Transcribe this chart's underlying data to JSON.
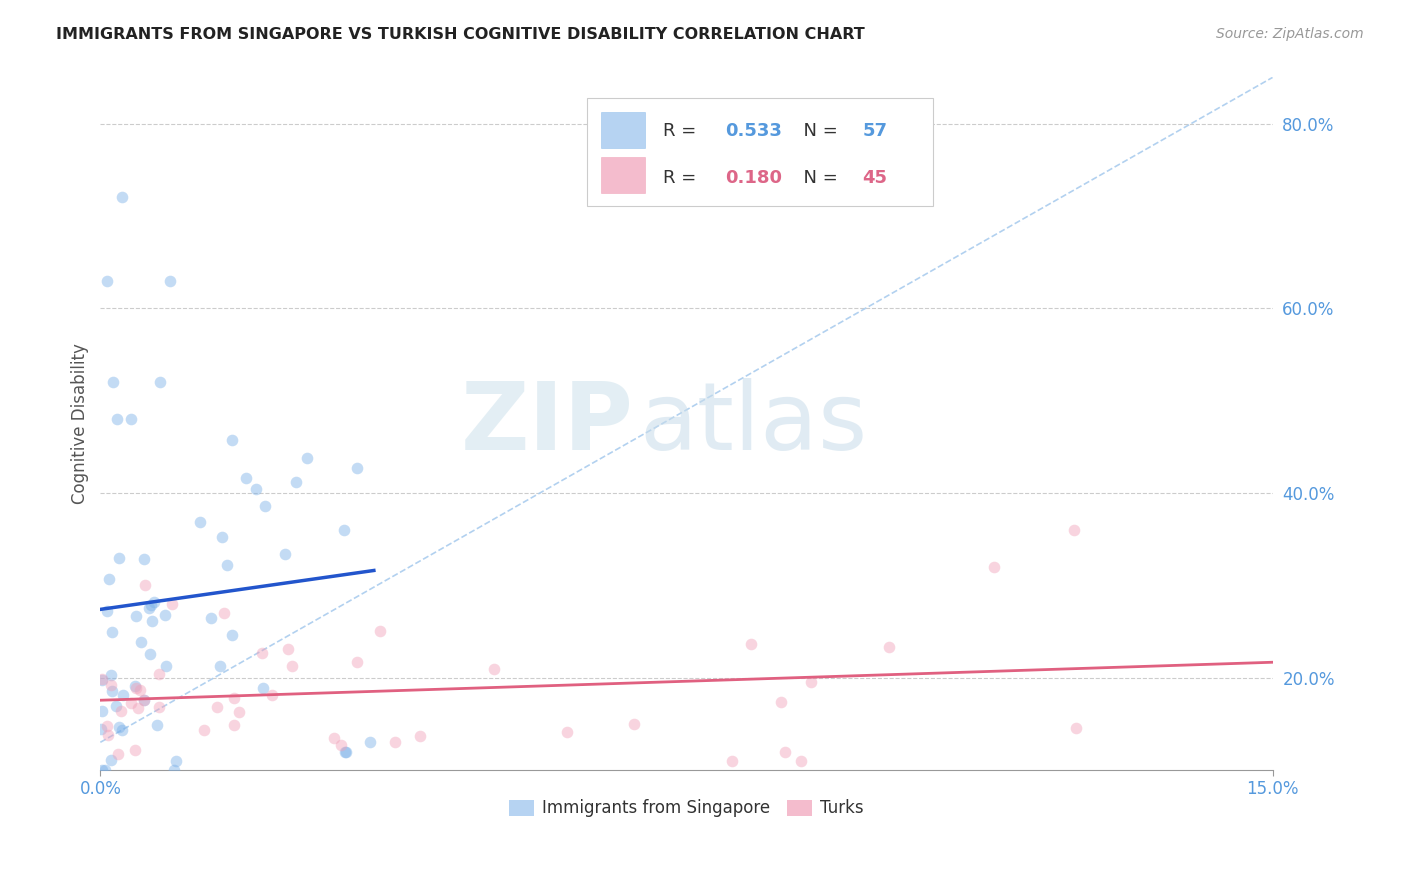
{
  "title": "IMMIGRANTS FROM SINGAPORE VS TURKISH COGNITIVE DISABILITY CORRELATION CHART",
  "source": "Source: ZipAtlas.com",
  "ylabel": "Cognitive Disability",
  "right_yticks": [
    "20.0%",
    "40.0%",
    "60.0%",
    "80.0%"
  ],
  "right_ytick_vals": [
    0.2,
    0.4,
    0.6,
    0.8
  ],
  "legend1_r": "0.533",
  "legend1_n": "57",
  "legend2_r": "0.180",
  "legend2_n": "45",
  "blue_scatter_color": "#7ab0e8",
  "pink_scatter_color": "#f0a0b8",
  "blue_line_color": "#2255cc",
  "pink_line_color": "#e06080",
  "dashed_line_color": "#aaccee",
  "watermark_zip": "ZIP",
  "watermark_atlas": "atlas",
  "xlim": [
    0,
    0.15
  ],
  "ylim": [
    0.1,
    0.85
  ]
}
